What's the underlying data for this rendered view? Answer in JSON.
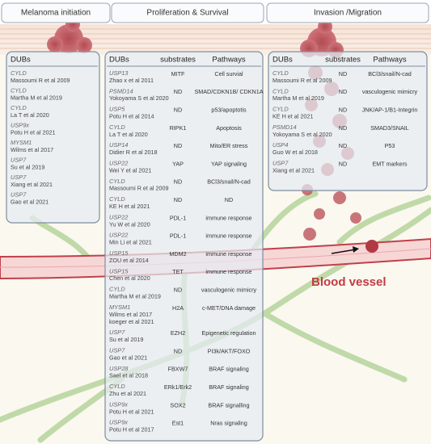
{
  "header": {
    "tabs": [
      "Melanoma initiation",
      "Proliferation & Survival",
      "Invasion /Migration"
    ]
  },
  "initiation": {
    "header": "DUBs",
    "rows": [
      {
        "gene": "CYLD",
        "refs": [
          "Massoumi R et al 2009"
        ]
      },
      {
        "gene": "CYLD",
        "refs": [
          "Martha M et al 2019"
        ]
      },
      {
        "gene": "CYLD",
        "refs": [
          "La T et al 2020"
        ]
      },
      {
        "gene": "USP9x",
        "refs": [
          "Potu H et al 2021"
        ]
      },
      {
        "gene": "MYSM1",
        "refs": [
          "Wilms et al 2017"
        ]
      },
      {
        "gene": "USP7",
        "refs": [
          "Su et al 2019"
        ]
      },
      {
        "gene": "USP7",
        "refs": [
          "Xiang et al 2021"
        ]
      },
      {
        "gene": "USP7",
        "refs": [
          "Gao et al 2021"
        ]
      }
    ]
  },
  "proliferation": {
    "headers": [
      "DUBs",
      "substrates",
      "Pathways"
    ],
    "rows": [
      {
        "gene": "USP13",
        "refs": [
          "Zhao x et al 2011"
        ],
        "substrate": "MITF",
        "pathway": "Cell survial"
      },
      {
        "gene": "PSMD14",
        "refs": [
          "Yokoyama S et al 2020"
        ],
        "substrate": "ND",
        "pathway": "SMAD/CDKN1B/ CDKN1A"
      },
      {
        "gene": "USP5",
        "refs": [
          "Potu H et al 2014"
        ],
        "substrate": "ND",
        "pathway": "p53/apoptotis"
      },
      {
        "gene": "CYLD",
        "refs": [
          "La T et al 2020"
        ],
        "substrate": "RIPK1",
        "pathway": "Apoptosis"
      },
      {
        "gene": "USP14",
        "refs": [
          "Didier R et al 2018"
        ],
        "substrate": "ND",
        "pathway": "Mito/ER stress"
      },
      {
        "gene": "USP22",
        "refs": [
          "Wei Y et al 2021"
        ],
        "substrate": "YAP",
        "pathway": "YAP signaling"
      },
      {
        "gene": "CYLD",
        "refs": [
          "Massoumi R et al 2009"
        ],
        "substrate": "ND",
        "pathway": "BCl3/snail/N-cad"
      },
      {
        "gene": "CYLD",
        "refs": [
          "KE H et al 2021"
        ],
        "substrate": "ND",
        "pathway": "ND"
      },
      {
        "gene": "USP22",
        "refs": [
          "Yu W et al 2020"
        ],
        "substrate": "PDL-1",
        "pathway": "immune response"
      },
      {
        "gene": "USP22",
        "refs": [
          "Min Li et al 2021"
        ],
        "substrate": "PDL-1",
        "pathway": "immune response"
      },
      {
        "gene": "USP15",
        "refs": [
          "ZOU et al 2014"
        ],
        "substrate": "MDM2",
        "pathway": "immune response"
      },
      {
        "gene": "USP15",
        "refs": [
          "Chen et al 2020"
        ],
        "substrate": "TET",
        "pathway": "immune response"
      },
      {
        "gene": "CYLD",
        "refs": [
          "Martha M et al 2019"
        ],
        "substrate": "ND",
        "pathway": "vasculogenic mimicry"
      },
      {
        "gene": "MYSM1",
        "refs": [
          "Wilms et al 2017",
          "koeger et al 2021"
        ],
        "substrate": "H2A",
        "pathway": "c-MET/DNA damage"
      },
      {
        "gene": "USP7",
        "refs": [
          "Su et al 2019"
        ],
        "substrate": "EZH2",
        "pathway": "Epigenetic regulation"
      },
      {
        "gene": "USP7",
        "refs": [
          "Gao et al 2021"
        ],
        "substrate": "ND",
        "pathway": "PI3k/AKT/FOXO"
      },
      {
        "gene": "USP28",
        "refs": [
          "Sael et al 2018"
        ],
        "substrate": "FBXW7",
        "pathway": "BRAF signaling"
      },
      {
        "gene": "CYLD",
        "refs": [
          "Zhu et al 2021"
        ],
        "substrate": "ERk1/Erk2",
        "pathway": "BRAF signaling"
      },
      {
        "gene": "USP9x",
        "refs": [
          "Potu H et al 2021"
        ],
        "substrate": "SOX2",
        "pathway": "BRAF signalling"
      },
      {
        "gene": "USP9x",
        "refs": [
          "Potu H et al 2017"
        ],
        "substrate": "Est1",
        "pathway": "Nras signaling"
      }
    ]
  },
  "invasion": {
    "headers": [
      "DUBs",
      "substrates",
      "Pathways"
    ],
    "rows": [
      {
        "gene": "CYLD",
        "refs": [
          "Massoumi R et al 2009"
        ],
        "substrate": "ND",
        "pathway": "BCl3/snail/N-cad"
      },
      {
        "gene": "CYLD",
        "refs": [
          "Martha M et al 2019"
        ],
        "substrate": "ND",
        "pathway": "vasculogenic mimicry"
      },
      {
        "gene": "CYLD",
        "refs": [
          "KE H et al 2021"
        ],
        "substrate": "ND",
        "pathway": "JNK/AP-1/B1-Integrin"
      },
      {
        "gene": "PSMD14",
        "refs": [
          "Yokoyama S et al 2020"
        ],
        "substrate": "ND",
        "pathway": "SMAD3/SNAIL"
      },
      {
        "gene": "USP4",
        "refs": [
          "Guo W et al 2018"
        ],
        "substrate": "ND",
        "pathway": "P53"
      },
      {
        "gene": "USP7",
        "refs": [
          "Xiang et al 2021"
        ],
        "substrate": "ND",
        "pathway": "EMT markers"
      }
    ]
  },
  "vessel_label": "Blood vessel"
}
